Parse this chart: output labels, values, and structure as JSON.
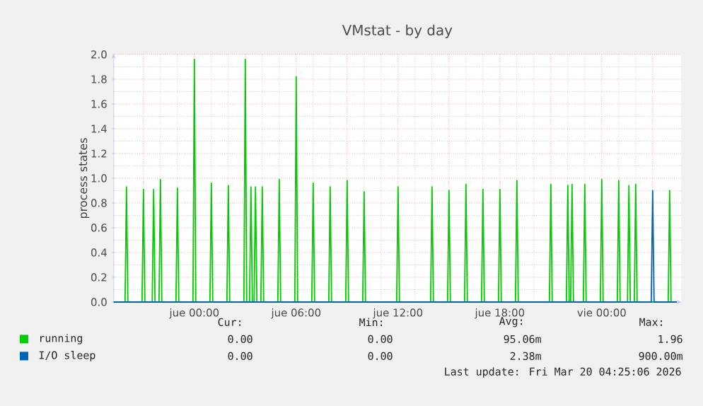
{
  "chart_data": {
    "type": "line",
    "title": "VMstat - by day",
    "ylabel": "process states",
    "xlim": [
      "2026-03-18T19:15",
      "2026-03-20T04:40"
    ],
    "ylim": [
      0,
      2.0
    ],
    "xticks": [
      {
        "value": "2026-03-18T21:00",
        "label": null
      },
      {
        "value": "2026-03-19T00:00",
        "label": "jue 00:00"
      },
      {
        "value": "2026-03-19T03:00",
        "label": null
      },
      {
        "value": "2026-03-19T06:00",
        "label": "jue 06:00"
      },
      {
        "value": "2026-03-19T09:00",
        "label": null
      },
      {
        "value": "2026-03-19T12:00",
        "label": "jue 12:00"
      },
      {
        "value": "2026-03-19T15:00",
        "label": null
      },
      {
        "value": "2026-03-19T18:00",
        "label": "jue 18:00"
      },
      {
        "value": "2026-03-19T21:00",
        "label": null
      },
      {
        "value": "2026-03-20T00:00",
        "label": "vie 00:00"
      },
      {
        "value": "2026-03-20T03:00",
        "label": null
      }
    ],
    "yticks": [
      {
        "value": 0,
        "label": "0.0"
      },
      {
        "value": 0.2,
        "label": "0.2"
      },
      {
        "value": 0.4,
        "label": "0.4"
      },
      {
        "value": 0.6,
        "label": "0.6"
      },
      {
        "value": 0.8,
        "label": "0.8"
      },
      {
        "value": 1.0,
        "label": "1.0"
      },
      {
        "value": 1.2,
        "label": "1.2"
      },
      {
        "value": 1.4,
        "label": "1.4"
      },
      {
        "value": 1.6,
        "label": "1.6"
      },
      {
        "value": 1.8,
        "label": "1.8"
      },
      {
        "value": 2.0,
        "label": "2.0"
      }
    ],
    "grid": true,
    "legend": "bottom left",
    "marker": "none",
    "line_style": "solid",
    "series": [
      {
        "name": "running",
        "color": "#00cc00",
        "x": [
          "2026-03-18T19:15",
          "2026-03-18T19:55",
          "2026-03-18T20:00",
          "2026-03-18T20:05",
          "2026-03-18T20:55",
          "2026-03-18T21:00",
          "2026-03-18T21:05",
          "2026-03-18T21:31",
          "2026-03-18T21:36",
          "2026-03-18T21:41",
          "2026-03-18T21:55",
          "2026-03-18T22:00",
          "2026-03-18T22:05",
          "2026-03-18T22:55",
          "2026-03-18T23:00",
          "2026-03-18T23:05",
          "2026-03-18T23:55",
          "2026-03-19T00:00",
          "2026-03-19T00:05",
          "2026-03-19T00:55",
          "2026-03-19T01:00",
          "2026-03-19T01:05",
          "2026-03-19T01:55",
          "2026-03-19T02:00",
          "2026-03-19T02:05",
          "2026-03-19T02:55",
          "2026-03-19T03:00",
          "2026-03-19T03:05",
          "2026-03-19T03:15",
          "2026-03-19T03:20",
          "2026-03-19T03:25",
          "2026-03-19T03:31",
          "2026-03-19T03:36",
          "2026-03-19T03:41",
          "2026-03-19T03:55",
          "2026-03-19T04:00",
          "2026-03-19T04:05",
          "2026-03-19T04:55",
          "2026-03-19T05:00",
          "2026-03-19T05:05",
          "2026-03-19T05:55",
          "2026-03-19T06:00",
          "2026-03-19T06:05",
          "2026-03-19T06:55",
          "2026-03-19T07:00",
          "2026-03-19T07:05",
          "2026-03-19T07:55",
          "2026-03-19T08:00",
          "2026-03-19T08:05",
          "2026-03-19T08:55",
          "2026-03-19T09:00",
          "2026-03-19T09:05",
          "2026-03-19T09:55",
          "2026-03-19T10:00",
          "2026-03-19T10:05",
          "2026-03-19T11:55",
          "2026-03-19T12:00",
          "2026-03-19T12:05",
          "2026-03-19T13:55",
          "2026-03-19T14:00",
          "2026-03-19T14:05",
          "2026-03-19T14:55",
          "2026-03-19T15:00",
          "2026-03-19T15:05",
          "2026-03-19T15:55",
          "2026-03-19T16:00",
          "2026-03-19T16:05",
          "2026-03-19T16:55",
          "2026-03-19T17:00",
          "2026-03-19T17:05",
          "2026-03-19T17:55",
          "2026-03-19T18:00",
          "2026-03-19T18:05",
          "2026-03-19T18:55",
          "2026-03-19T19:00",
          "2026-03-19T19:05",
          "2026-03-19T20:55",
          "2026-03-19T21:00",
          "2026-03-19T21:05",
          "2026-03-19T21:55",
          "2026-03-19T22:00",
          "2026-03-19T22:05",
          "2026-03-19T22:10",
          "2026-03-19T22:15",
          "2026-03-19T22:20",
          "2026-03-19T22:55",
          "2026-03-19T23:00",
          "2026-03-19T23:05",
          "2026-03-19T23:55",
          "2026-03-20T00:00",
          "2026-03-20T00:05",
          "2026-03-20T00:55",
          "2026-03-20T01:00",
          "2026-03-20T01:05",
          "2026-03-20T01:31",
          "2026-03-20T01:36",
          "2026-03-20T01:41",
          "2026-03-20T01:55",
          "2026-03-20T02:00",
          "2026-03-20T02:05",
          "2026-03-20T03:55",
          "2026-03-20T04:00",
          "2026-03-20T04:05",
          "2026-03-20T04:25"
        ],
        "values": [
          0,
          0,
          0.93,
          0,
          0,
          0.91,
          0,
          0,
          0.91,
          0,
          0,
          0.99,
          0,
          0,
          0.92,
          0,
          0,
          1.96,
          0,
          0,
          0.96,
          0,
          0,
          0.94,
          0,
          0,
          1.96,
          0,
          0,
          0.93,
          0,
          0,
          0.93,
          0,
          0,
          0.93,
          0,
          0,
          0.99,
          0,
          0,
          1.82,
          0,
          0,
          0.96,
          0,
          0,
          0.93,
          0,
          0,
          0.98,
          0,
          0,
          0.89,
          0,
          0,
          0.93,
          0,
          0,
          0.93,
          0,
          0,
          0.9,
          0,
          0,
          0.95,
          0,
          0,
          0.91,
          0,
          0,
          0.91,
          0,
          0,
          0.98,
          0,
          0,
          0.95,
          0,
          0,
          0.94,
          0,
          0,
          0.95,
          0,
          0,
          0.95,
          0,
          0,
          0.99,
          0,
          0,
          0.98,
          0,
          0,
          0.94,
          0,
          0,
          0.95,
          0,
          0,
          0.9,
          0,
          0
        ]
      },
      {
        "name": "I/O sleep",
        "color": "#0066b3",
        "x": [
          "2026-03-18T19:15",
          "2026-03-20T02:55",
          "2026-03-20T03:00",
          "2026-03-20T03:05",
          "2026-03-20T04:25"
        ],
        "values": [
          0,
          0,
          0.9,
          0,
          0
        ]
      }
    ],
    "annotations": [
      "Cur:",
      "Min:",
      "Avg:",
      "Max:",
      "0.00",
      "0.00",
      "95.06m",
      "1.96",
      "0.00",
      "0.00",
      "2.38m",
      "900.00m",
      "Last update: Fri Mar 20 04:25:06 2026"
    ]
  }
}
